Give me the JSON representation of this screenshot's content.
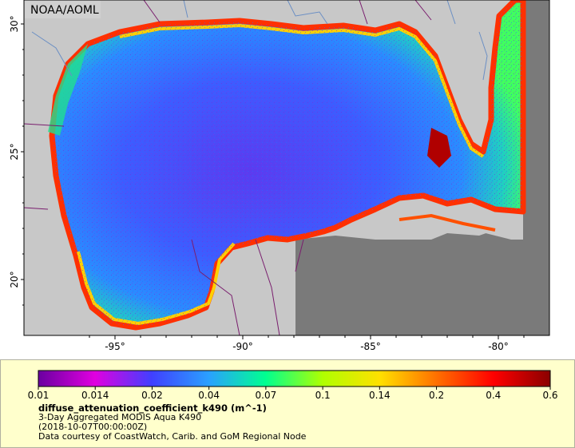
{
  "map": {
    "watermark": "NOAA/AOML",
    "lat_ticks": [
      "30°",
      "25°",
      "20°"
    ],
    "lon_ticks": [
      "-95°",
      "-90°",
      "-85°",
      "-80°"
    ],
    "colors": {
      "land": "#c8c8c8",
      "no_data": "#7a7a7a",
      "border": "#7a1e6e",
      "river": "#6b8fc4"
    }
  },
  "colorbar": {
    "labels": [
      "0.01",
      "0.014",
      "0.02",
      "0.04",
      "0.07",
      "0.1",
      "0.14",
      "0.2",
      "0.4",
      "0.6"
    ],
    "colors": [
      "#6a00a0",
      "#e000e0",
      "#4040ff",
      "#2aa0ff",
      "#00ff90",
      "#b0ff00",
      "#ffe000",
      "#ff7000",
      "#ff0000",
      "#8a0000"
    ]
  },
  "info": {
    "variable": "diffuse_attenuation_coefficient_k490 (m^-1)",
    "dataset": "3-Day Aggregated MODIS Aqua K490",
    "time": "(2018-10-07T00:00:00Z)",
    "credit": "Data courtesy of CoastWatch, Carib. and GoM Regional Node"
  }
}
